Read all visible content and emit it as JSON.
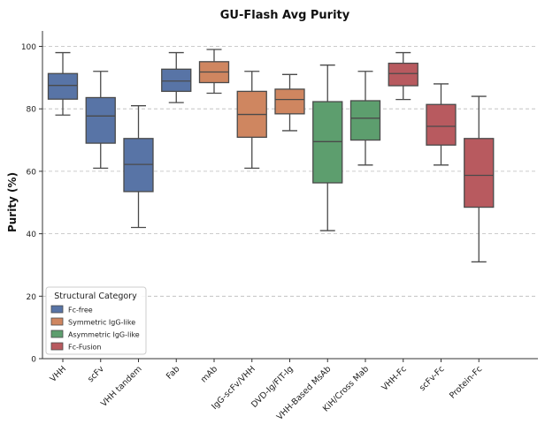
{
  "chart_data": {
    "type": "box",
    "title": "GU-Flash Avg Purity",
    "xlabel": "",
    "ylabel": "Purity (%)",
    "ylim": [
      0,
      105
    ],
    "yticks": [
      0,
      20,
      40,
      60,
      80,
      100
    ],
    "grid": "horizontal dashed",
    "legend": {
      "title": "Structural Category",
      "placement": "bottom-left",
      "entries": [
        {
          "name": "Fc-free",
          "color": "#5874a6"
        },
        {
          "name": "Symmetric IgG-like",
          "color": "#cf8660"
        },
        {
          "name": "Asymmetric IgG-like",
          "color": "#5d9e6e"
        },
        {
          "name": "Fc-Fusion",
          "color": "#b85a5f"
        }
      ]
    },
    "boxes": [
      {
        "category": "VHH",
        "group": "Fc-free",
        "min": 78,
        "q1": 83.1,
        "median": 87.5,
        "q3": 91.3,
        "max": 98
      },
      {
        "category": "scFv",
        "group": "Fc-free",
        "min": 61,
        "q1": 69,
        "median": 77.7,
        "q3": 83.6,
        "max": 92
      },
      {
        "category": "VHH tandem",
        "group": "Fc-free",
        "min": 42,
        "q1": 53.5,
        "median": 62.2,
        "q3": 70.5,
        "max": 81
      },
      {
        "category": "Fab",
        "group": "Fc-free",
        "min": 82,
        "q1": 85.6,
        "median": 88.9,
        "q3": 92.7,
        "max": 98
      },
      {
        "category": "mAb",
        "group": "Symmetric IgG-like",
        "min": 85,
        "q1": 88.4,
        "median": 91.8,
        "q3": 95.1,
        "max": 99
      },
      {
        "category": "IgG-scFv/VHH",
        "group": "Symmetric IgG-like",
        "min": 61,
        "q1": 70.9,
        "median": 78.2,
        "q3": 85.6,
        "max": 92
      },
      {
        "category": "DVD-Ig/FIT-Ig",
        "group": "Symmetric IgG-like",
        "min": 73,
        "q1": 78.4,
        "median": 83,
        "q3": 86.3,
        "max": 91
      },
      {
        "category": "VHH-Based MsAb",
        "group": "Asymmetric IgG-like",
        "min": 41,
        "q1": 56.3,
        "median": 69.5,
        "q3": 82.3,
        "max": 94
      },
      {
        "category": "KiH/Cross Mab",
        "group": "Asymmetric IgG-like",
        "min": 62,
        "q1": 70,
        "median": 77,
        "q3": 82.6,
        "max": 92
      },
      {
        "category": "VHH-Fc",
        "group": "Fc-Fusion",
        "min": 83,
        "q1": 87.4,
        "median": 91.3,
        "q3": 94.6,
        "max": 98
      },
      {
        "category": "scFv-Fc",
        "group": "Fc-Fusion",
        "min": 62,
        "q1": 68.4,
        "median": 74.4,
        "q3": 81.4,
        "max": 88
      },
      {
        "category": "Protein-Fc",
        "group": "Fc-Fusion",
        "min": 31,
        "q1": 48.5,
        "median": 58.7,
        "q3": 70.5,
        "max": 84
      }
    ]
  }
}
